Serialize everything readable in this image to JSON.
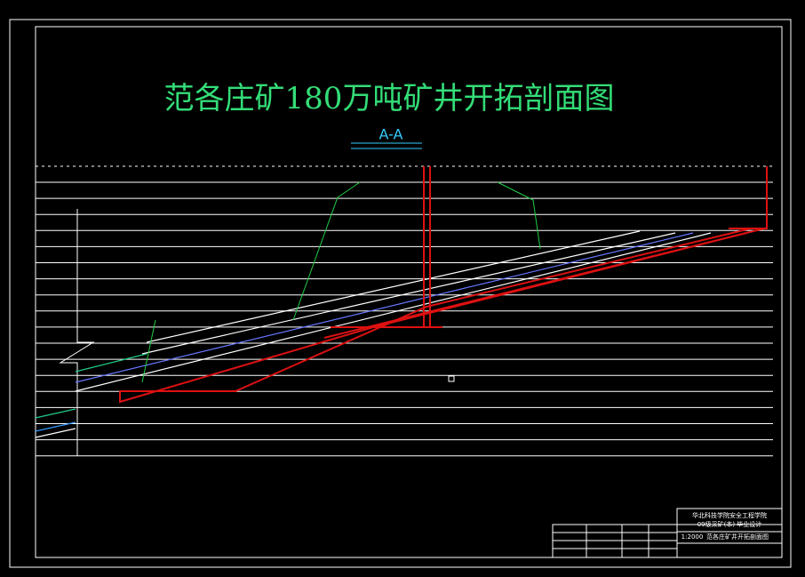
{
  "drawing": {
    "title": "范各庄矿180万吨矿井开拓剖面图",
    "section_label": "A-A"
  },
  "title_block": {
    "school": "华北科技学院安全工程学院",
    "class": "09级采矿(本) 毕业设计",
    "drawing_name": "范各庄矿井开拓剖面图",
    "scale": "1:2000"
  }
}
